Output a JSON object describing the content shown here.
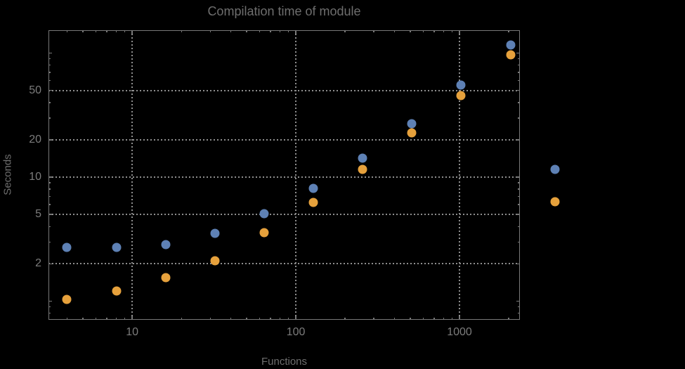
{
  "title": "Compilation time of module",
  "colors": {
    "background": "#000000",
    "series_blue": "#5e81b5",
    "series_orange": "#e6a13c",
    "frame": "#787878",
    "grid": "#8e8e8e",
    "title_text": "#6e6e6e",
    "tick_text": "#7c7c7c"
  },
  "chart_data": {
    "type": "scatter",
    "title": "Compilation time of module",
    "xlabel": "Functions",
    "ylabel": "Seconds",
    "x_scale": "log",
    "y_scale": "log",
    "xlim": [
      3.08,
      2340
    ],
    "ylim": [
      0.708,
      153
    ],
    "grid": true,
    "legend_position": "none",
    "x": [
      4,
      8,
      16,
      32,
      64,
      128,
      256,
      512,
      1024,
      2048
    ],
    "series": [
      {
        "name": "series-blue",
        "color": "#5e81b5",
        "values": [
          2.7,
          2.72,
          2.86,
          3.52,
          5.1,
          8.1,
          14.3,
          27,
          55,
          117
        ]
      },
      {
        "name": "series-orange",
        "color": "#e6a13c",
        "values": [
          1.03,
          1.21,
          1.55,
          2.13,
          3.55,
          6.25,
          11.6,
          22.8,
          45.5,
          97
        ]
      }
    ],
    "outside_points": [
      {
        "series": "series-blue",
        "x": 3840,
        "y": 11.5
      },
      {
        "series": "series-orange",
        "x": 3840,
        "y": 6.3
      }
    ],
    "x_ticks": [
      {
        "v": 10,
        "label": "10"
      },
      {
        "v": 100,
        "label": "100"
      },
      {
        "v": 1000,
        "label": "1000"
      }
    ],
    "y_ticks": [
      {
        "v": 1,
        "label": ""
      },
      {
        "v": 2,
        "label": "2"
      },
      {
        "v": 5,
        "label": "5"
      },
      {
        "v": 10,
        "label": "10"
      },
      {
        "v": 20,
        "label": "20"
      },
      {
        "v": 50,
        "label": "50"
      },
      {
        "v": 100,
        "label": ""
      }
    ],
    "x_minor_ticks": [
      4,
      5,
      6,
      7,
      8,
      9,
      20,
      30,
      40,
      50,
      60,
      70,
      80,
      90,
      200,
      300,
      400,
      500,
      600,
      700,
      800,
      900,
      2000
    ],
    "y_minor_ticks": [
      0.8,
      0.9,
      3,
      4,
      6,
      7,
      8,
      9,
      30,
      40,
      60,
      70,
      80,
      90
    ],
    "x_gridlines": [
      10,
      100,
      1000
    ],
    "y_gridlines": [
      2,
      5,
      10,
      20,
      50
    ]
  }
}
